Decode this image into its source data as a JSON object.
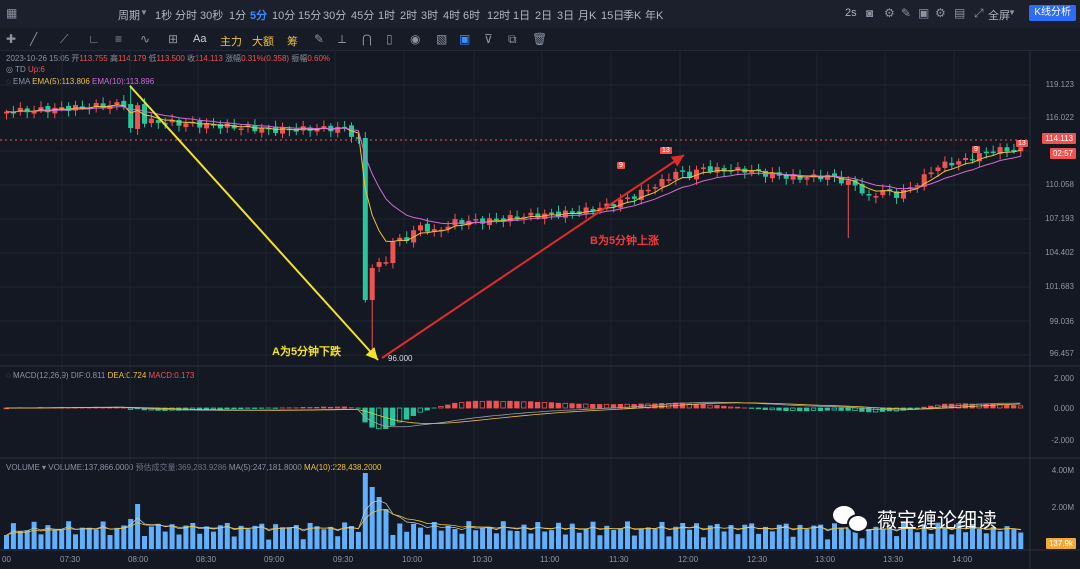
{
  "topbar": {
    "period_label": "周期",
    "timeframes": [
      "1秒",
      "分时",
      "30秒",
      "1分",
      "5分",
      "10分",
      "15分",
      "30分",
      "45分",
      "1时",
      "2时",
      "3时",
      "4时",
      "6时",
      "12时",
      "1日",
      "2日",
      "3日",
      "月K",
      "15日",
      "季K",
      "年K"
    ],
    "active_timeframe": "5分",
    "refresh": "2s",
    "fullscreen": "全屏",
    "analysis_button": "K线分析"
  },
  "toolbar": {
    "items": [
      "主力",
      "大额",
      "筹"
    ],
    "aa": "Aa"
  },
  "candle_info": {
    "datetime": "2023-10-26 15:05",
    "open_label": "开",
    "open": "113.755",
    "high_label": "高",
    "high": "114.179",
    "low_label": "低",
    "low": "113.500",
    "close_label": "收",
    "close": "114.113",
    "change_label": "涨幅",
    "change": "0.31%(0.358)",
    "amp_label": "振幅",
    "amp": "0.60%",
    "td_label": "TD",
    "td_value": "Up:6",
    "ema_label": "EMA",
    "ema5": "EMA(5):113.806",
    "ema10": "EMA(10):113.896"
  },
  "macd_info": {
    "label": "MACD(12,26,9)",
    "dif": "DIF:0.811",
    "dea": "DEA:0.724",
    "macd": "MACD:0.173"
  },
  "volume_info": {
    "label": "VOLUME",
    "volume": "VOLUME:137,866.0000",
    "est": "预估成交量:369,283.9286",
    "ma5": "MA(5):247,181.8000",
    "ma10": "MA(10):228,438.2000"
  },
  "price_axis": [
    "119.123",
    "116.022",
    "113.113",
    "110.058",
    "107.193",
    "104.402",
    "101.683",
    "99.036",
    "96.457"
  ],
  "current_price": "114.113",
  "countdown": "02:57",
  "macd_axis": [
    "2.000",
    "0.000",
    "-2.000"
  ],
  "volume_axis": [
    "4.00M",
    "2.00M"
  ],
  "volume_current": "137.9k",
  "time_axis": [
    "07:30",
    "08:00",
    "08:30",
    "09:00",
    "09:30",
    "10:00",
    "10:30",
    "11:00",
    "11:30",
    "12:00",
    "12:30",
    "13:00",
    "13:30",
    "14:00"
  ],
  "time_axis_left": "00",
  "low_marker": "96.000",
  "td_markers": [
    "9",
    "13",
    "9",
    "13"
  ],
  "annotations": {
    "a": "A为5分钟下跌",
    "b": "B为5分钟上涨"
  },
  "watermark": "薇宝缠论细读",
  "colors": {
    "up": "#ef5350",
    "down": "#26c69a",
    "ema5": "#f0c23a",
    "ema10": "#d16bd6",
    "arrow_a": "#f2e325",
    "arrow_b": "#e02b2b",
    "accent": "#3d8bff"
  }
}
